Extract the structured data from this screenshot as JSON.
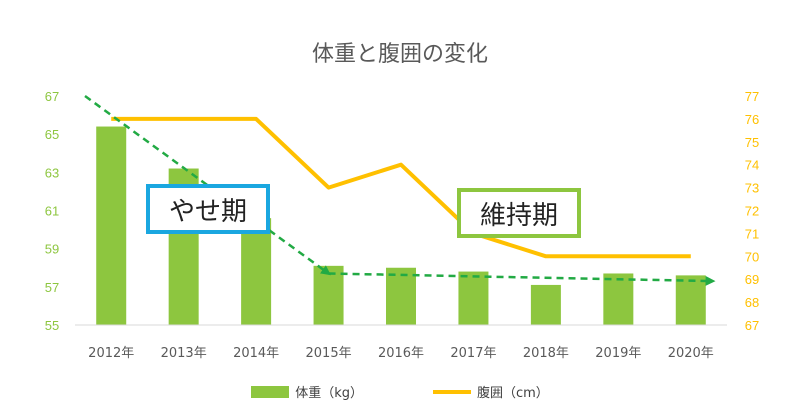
{
  "chart_data": {
    "type": "bar+line",
    "title": "体重と腹囲の変化",
    "categories": [
      "2012年",
      "2013年",
      "2014年",
      "2015年",
      "2016年",
      "2017年",
      "2018年",
      "2019年",
      "2020年"
    ],
    "series": [
      {
        "name": "体重（kg）",
        "type": "bar",
        "axis": "left",
        "color": "#8DC63F",
        "values": [
          65.4,
          63.2,
          60.6,
          58.1,
          58.0,
          57.8,
          57.1,
          57.7,
          57.6
        ]
      },
      {
        "name": "腹囲（cm）",
        "type": "line",
        "axis": "right",
        "color": "#FFC000",
        "values": [
          76,
          76,
          76,
          73,
          74,
          71,
          70,
          70,
          70
        ]
      }
    ],
    "y_left": {
      "min": 55,
      "max": 67,
      "ticks": [
        "55",
        "57",
        "59",
        "61",
        "63",
        "65",
        "67"
      ],
      "color": "#8DC63F"
    },
    "y_right": {
      "min": 67,
      "max": 77,
      "ticks": [
        "67",
        "68",
        "69",
        "70",
        "71",
        "72",
        "73",
        "74",
        "75",
        "76",
        "77"
      ],
      "color": "#FFC000"
    },
    "trend_arrows": [
      {
        "from": [
          0,
          67
        ],
        "to": [
          3.0,
          57.7
        ],
        "axis": "left",
        "color": "#22AA44"
      },
      {
        "from": [
          3.0,
          57.7
        ],
        "to": [
          8.3,
          57.3
        ],
        "axis": "left",
        "color": "#22AA44"
      }
    ],
    "annotations": [
      {
        "text": "やせ期",
        "border": "#1AA7E0"
      },
      {
        "text": "維持期",
        "border": "#8DC63F"
      }
    ],
    "legend": "bottom",
    "grid": false
  }
}
